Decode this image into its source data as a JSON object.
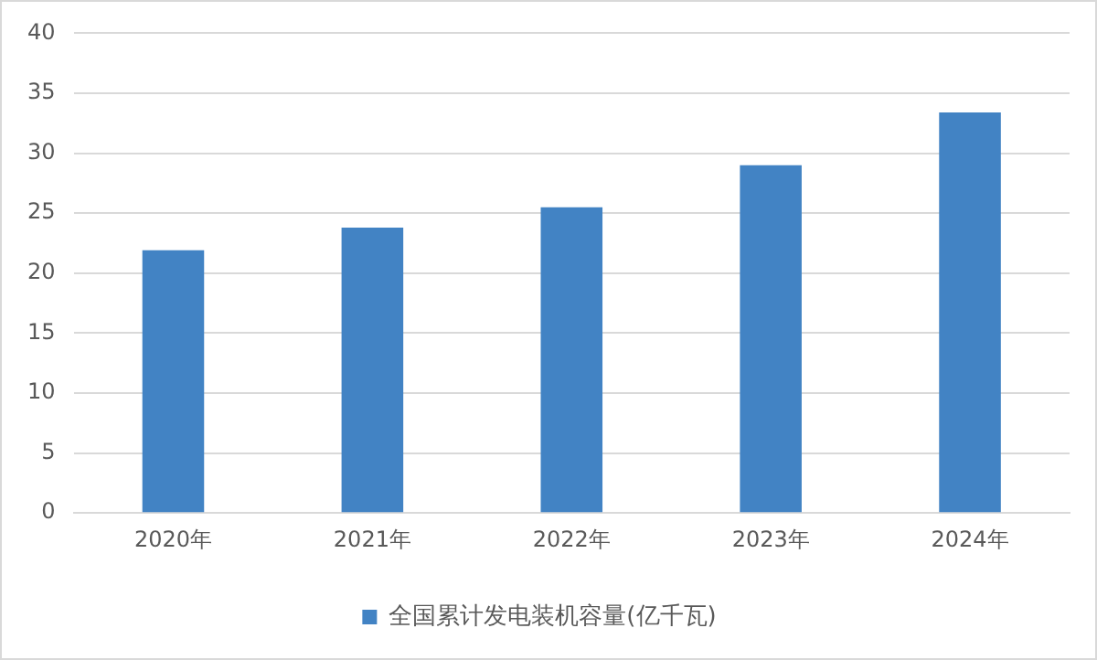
{
  "chart_data": {
    "type": "bar",
    "categories": [
      "2020年",
      "2021年",
      "2022年",
      "2023年",
      "2024年"
    ],
    "series": [
      {
        "name": "全国累计发电装机容量(亿千瓦)",
        "color": "#4283c4",
        "values": [
          21.9,
          23.8,
          25.5,
          29.0,
          33.4
        ]
      }
    ],
    "ylim": [
      0,
      40
    ],
    "yticks": [
      0,
      5,
      10,
      15,
      20,
      25,
      30,
      35,
      40
    ],
    "grid": "y",
    "legend": "bottom"
  }
}
